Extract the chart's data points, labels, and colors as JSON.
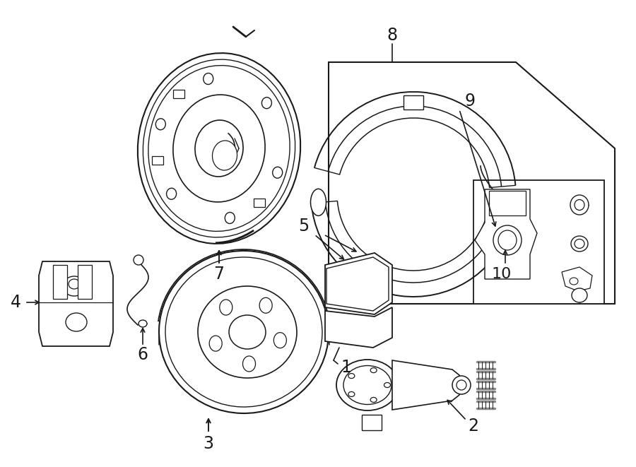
{
  "bg_color": "#ffffff",
  "line_color": "#1a1a1a",
  "figsize": [
    9.0,
    6.61
  ],
  "dpi": 100,
  "label_fontsize": 17
}
